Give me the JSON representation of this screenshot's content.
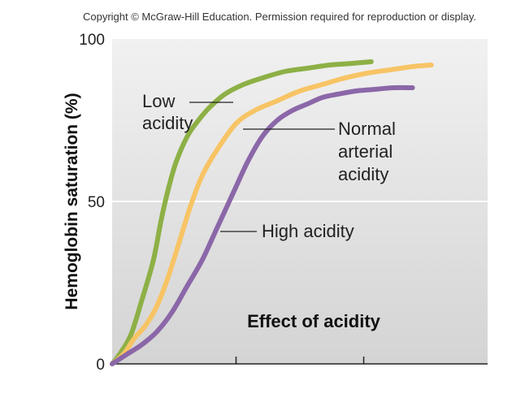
{
  "copyright": "Copyright © McGraw-Hill Education. Permission required for reproduction or display.",
  "chart_data": {
    "type": "line",
    "title": "Effect of acidity",
    "xlabel": "",
    "ylabel": "Hemoglobin saturation (%)",
    "xlim": [
      0,
      100
    ],
    "ylim": [
      0,
      100
    ],
    "yticks": [
      0,
      50,
      100
    ],
    "ytick_labels": [
      "0",
      "50",
      "100"
    ],
    "xticks": [
      33,
      67
    ],
    "grid": false,
    "series": [
      {
        "name": "Low acidity",
        "label_lines": [
          "Low",
          "acidity"
        ],
        "color": "#8db046",
        "x": [
          0,
          2,
          5,
          8,
          11,
          13,
          15,
          17,
          20,
          23,
          26,
          30,
          35,
          40,
          46,
          52,
          58,
          64,
          69
        ],
        "y": [
          0,
          3,
          9,
          20,
          32,
          44,
          54,
          62,
          70,
          75,
          79,
          83,
          86,
          88,
          90,
          91,
          92,
          92.5,
          93
        ]
      },
      {
        "name": "Normal arterial acidity",
        "label_lines": [
          "Normal",
          "arterial",
          "acidity"
        ],
        "color": "#f7c465",
        "x": [
          0,
          3,
          6,
          9,
          12,
          15,
          18,
          21,
          24,
          28,
          33,
          38,
          44,
          50,
          56,
          62,
          68,
          74,
          80,
          85
        ],
        "y": [
          0,
          3,
          8,
          12,
          18,
          27,
          38,
          49,
          58,
          66,
          74,
          78,
          81,
          84,
          86,
          88,
          89.5,
          90.5,
          91.5,
          92
        ]
      },
      {
        "name": "High acidity",
        "label_lines": [
          "High acidity"
        ],
        "color": "#8b67a8",
        "x": [
          0,
          4,
          8,
          12,
          16,
          20,
          24,
          28,
          32,
          36,
          40,
          44,
          48,
          52,
          56,
          60,
          65,
          70,
          75,
          80
        ],
        "y": [
          0,
          3,
          6,
          10,
          16,
          24,
          32,
          42,
          52,
          62,
          70,
          75,
          78,
          80,
          82,
          83,
          84,
          84.5,
          85,
          85
        ]
      }
    ]
  }
}
